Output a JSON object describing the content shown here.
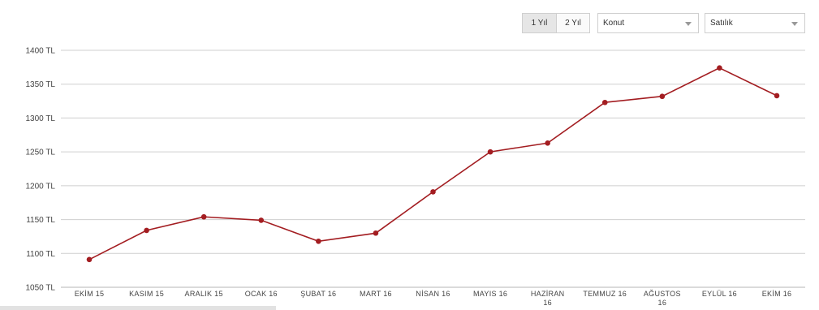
{
  "controls": {
    "range_1y": "1 Yıl",
    "range_2y": "2 Yıl",
    "property_type": "Konut",
    "listing_type": "Satılık"
  },
  "chart_data": {
    "type": "line",
    "title": "",
    "xlabel": "",
    "ylabel": "",
    "categories": [
      "EKİM 15",
      "KASIM 15",
      "ARALIK 15",
      "OCAK 16",
      "ŞUBAT 16",
      "MART 16",
      "NİSAN 16",
      "MAYIS 16",
      "HAZİRAN 16",
      "TEMMUZ 16",
      "AĞUSTOS 16",
      "EYLÜL 16",
      "EKİM 16"
    ],
    "series": [
      {
        "values": [
          1091,
          1134,
          1154,
          1149,
          1118,
          1130,
          1191,
          1250,
          1263,
          1323,
          1332,
          1374,
          1333
        ]
      }
    ],
    "yticks": [
      "1050 TL",
      "1100 TL",
      "1150 TL",
      "1200 TL",
      "1250 TL",
      "1300 TL",
      "1350 TL",
      "1400 TL"
    ],
    "ylim": [
      1050,
      1400
    ],
    "grid": true,
    "color": "#a31d21"
  }
}
